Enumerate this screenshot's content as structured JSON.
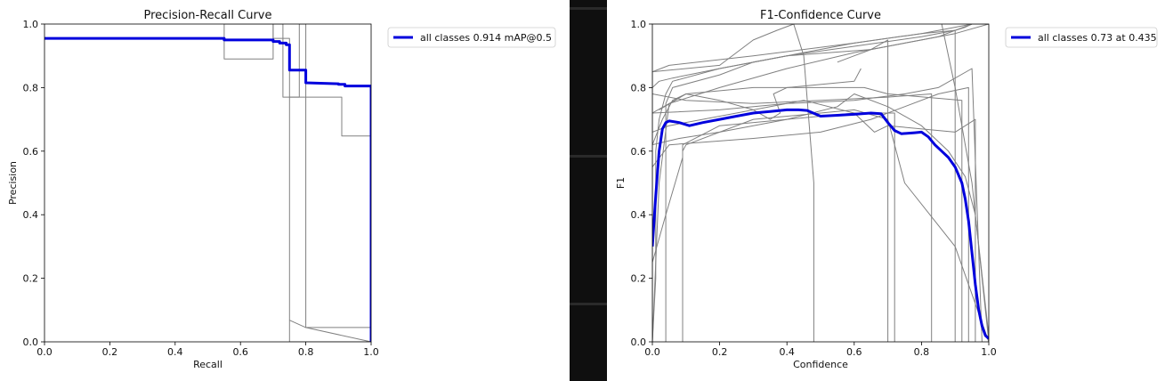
{
  "chart_data": [
    {
      "type": "line",
      "title": "Precision-Recall Curve",
      "xlabel": "Recall",
      "ylabel": "Precision",
      "xlim": [
        0,
        1
      ],
      "ylim": [
        0,
        1
      ],
      "xticks": [
        "0.0",
        "0.2",
        "0.4",
        "0.6",
        "0.8",
        "1.0"
      ],
      "yticks": [
        "0.0",
        "0.2",
        "0.4",
        "0.6",
        "0.8",
        "1.0"
      ],
      "legend_position": "outside-top-right",
      "grid": false,
      "series": [
        {
          "name": "all classes 0.914 mAP@0.5",
          "color": "#0000dd",
          "x": [
            0.0,
            0.55,
            0.55,
            0.7,
            0.7,
            0.72,
            0.72,
            0.74,
            0.74,
            0.75,
            0.75,
            0.8,
            0.8,
            0.9,
            0.9,
            0.92,
            0.92,
            1.0,
            1.0
          ],
          "y": [
            0.955,
            0.955,
            0.95,
            0.95,
            0.945,
            0.945,
            0.94,
            0.94,
            0.935,
            0.935,
            0.855,
            0.855,
            0.815,
            0.812,
            0.81,
            0.81,
            0.805,
            0.805,
            0.0
          ]
        },
        {
          "color": "#808080",
          "x": [
            0.0,
            0.55,
            0.55,
            0.7,
            0.7,
            0.75,
            0.75,
            1.0,
            1.0
          ],
          "y": [
            0.955,
            0.955,
            1.0,
            1.0,
            0.955,
            0.955,
            0.0,
            0.0,
            0.0
          ]
        },
        {
          "color": "#808080",
          "x": [
            0.55,
            0.55,
            0.7,
            0.7,
            0.73,
            0.73,
            0.78,
            0.78,
            0.8,
            0.8,
            1.0,
            1.0
          ],
          "y": [
            0.955,
            0.89,
            0.89,
            1.0,
            1.0,
            0.77,
            0.77,
            1.0,
            1.0,
            0.045,
            0.045,
            0.0
          ]
        },
        {
          "color": "#808080",
          "x": [
            0.75,
            0.91,
            0.91,
            1.0,
            1.0
          ],
          "y": [
            0.77,
            0.77,
            0.648,
            0.648,
            0.0
          ]
        },
        {
          "color": "#808080",
          "x": [
            0.75,
            0.8,
            1.0
          ],
          "y": [
            0.068,
            0.045,
            0.0
          ]
        }
      ]
    },
    {
      "type": "line",
      "title": "F1-Confidence Curve",
      "xlabel": "Confidence",
      "ylabel": "F1",
      "xlim": [
        0,
        1
      ],
      "ylim": [
        0,
        1
      ],
      "xticks": [
        "0.0",
        "0.2",
        "0.4",
        "0.6",
        "0.8",
        "1.0"
      ],
      "yticks": [
        "0.0",
        "0.2",
        "0.4",
        "0.6",
        "0.8",
        "1.0"
      ],
      "legend_position": "outside-top-right",
      "grid": false,
      "series": [
        {
          "name": "all classes 0.73 at 0.435",
          "color": "#0000dd",
          "x": [
            0.0,
            0.01,
            0.02,
            0.03,
            0.04,
            0.05,
            0.08,
            0.11,
            0.15,
            0.2,
            0.25,
            0.3,
            0.35,
            0.4,
            0.435,
            0.46,
            0.5,
            0.55,
            0.6,
            0.65,
            0.68,
            0.7,
            0.72,
            0.74,
            0.78,
            0.8,
            0.82,
            0.84,
            0.86,
            0.88,
            0.9,
            0.92,
            0.93,
            0.94,
            0.95,
            0.96,
            0.97,
            0.98,
            0.99,
            1.0
          ],
          "y": [
            0.3,
            0.46,
            0.6,
            0.67,
            0.69,
            0.695,
            0.69,
            0.68,
            0.69,
            0.7,
            0.71,
            0.72,
            0.725,
            0.73,
            0.73,
            0.728,
            0.71,
            0.713,
            0.716,
            0.72,
            0.718,
            0.69,
            0.665,
            0.655,
            0.658,
            0.66,
            0.645,
            0.62,
            0.6,
            0.58,
            0.55,
            0.5,
            0.45,
            0.38,
            0.28,
            0.18,
            0.1,
            0.05,
            0.02,
            0.01
          ]
        },
        {
          "color": "#808080",
          "x": [
            0.0,
            0.01,
            0.01,
            0.02,
            0.04,
            0.06,
            0.2,
            0.4,
            0.6,
            0.8,
            0.9,
            0.95,
            1.0
          ],
          "y": [
            0.0,
            0.2,
            0.6,
            0.7,
            0.78,
            0.82,
            0.86,
            0.9,
            0.93,
            0.96,
            0.98,
            1.0,
            1.0
          ]
        },
        {
          "color": "#808080",
          "x": [
            0.0,
            0.02,
            0.05,
            0.2,
            0.4,
            0.6,
            0.8,
            0.9,
            1.0
          ],
          "y": [
            0.0,
            0.5,
            0.75,
            0.8,
            0.86,
            0.91,
            0.95,
            0.97,
            1.0
          ]
        },
        {
          "color": "#808080",
          "x": [
            0.0,
            0.0,
            0.2,
            0.3,
            0.37,
            0.42,
            0.45,
            0.48,
            0.48
          ],
          "y": [
            0.0,
            0.85,
            0.87,
            0.95,
            0.98,
            1.0,
            0.9,
            0.5,
            0.0
          ]
        },
        {
          "color": "#808080",
          "x": [
            0.04,
            0.04,
            0.06,
            0.2,
            0.3,
            0.4,
            0.6,
            0.8,
            0.9,
            0.95,
            1.0
          ],
          "y": [
            0.0,
            0.75,
            0.8,
            0.84,
            0.88,
            0.9,
            0.94,
            0.97,
            0.99,
            1.0,
            1.0
          ]
        },
        {
          "color": "#808080",
          "x": [
            0.09,
            0.09,
            0.1,
            0.3,
            0.5,
            0.6,
            0.7,
            0.75,
            0.9,
            1.0
          ],
          "y": [
            0.0,
            0.6,
            0.62,
            0.7,
            0.72,
            0.73,
            0.7,
            0.5,
            0.3,
            0.0
          ]
        },
        {
          "color": "#808080",
          "x": [
            0.0,
            0.08,
            0.2,
            0.4,
            0.55,
            0.6,
            0.7,
            0.8,
            0.88,
            0.93,
            0.96,
            1.0
          ],
          "y": [
            0.62,
            0.64,
            0.66,
            0.7,
            0.74,
            0.78,
            0.74,
            0.68,
            0.6,
            0.52,
            0.4,
            0.02
          ]
        },
        {
          "color": "#808080",
          "x": [
            0.0,
            0.04,
            0.09,
            0.09,
            0.2,
            0.4,
            0.6,
            0.72,
            0.72
          ],
          "y": [
            0.25,
            0.4,
            0.58,
            0.62,
            0.68,
            0.7,
            0.72,
            0.72,
            0.0
          ]
        },
        {
          "color": "#808080",
          "x": [
            0.0,
            0.1,
            0.3,
            0.5,
            0.7,
            0.83,
            0.83
          ],
          "y": [
            0.78,
            0.76,
            0.75,
            0.76,
            0.77,
            0.78,
            0.0
          ]
        },
        {
          "color": "#808080",
          "x": [
            0.0,
            0.05,
            0.3,
            0.6,
            0.8,
            0.9,
            0.9
          ],
          "y": [
            0.85,
            0.87,
            0.9,
            0.94,
            0.97,
            0.98,
            0.0
          ]
        },
        {
          "color": "#808080",
          "x": [
            0.02,
            0.1,
            0.3,
            0.5,
            0.63,
            0.7,
            0.92,
            0.92
          ],
          "y": [
            0.73,
            0.78,
            0.8,
            0.8,
            0.8,
            0.78,
            0.76,
            0.0
          ]
        },
        {
          "color": "#808080",
          "x": [
            0.0,
            0.2,
            0.4,
            0.6,
            0.75,
            0.85,
            0.95,
            0.98
          ],
          "y": [
            0.72,
            0.73,
            0.75,
            0.76,
            0.78,
            0.8,
            0.86,
            0.0
          ]
        },
        {
          "color": "#808080",
          "x": [
            0.0,
            0.05,
            0.25,
            0.45,
            0.6,
            0.66,
            0.7,
            0.9,
            0.96,
            0.96
          ],
          "y": [
            0.66,
            0.68,
            0.72,
            0.76,
            0.72,
            0.66,
            0.68,
            0.66,
            0.7,
            0.0
          ]
        },
        {
          "color": "#808080",
          "x": [
            0.0,
            0.05,
            0.3,
            0.5,
            0.65,
            0.85,
            0.94,
            0.94
          ],
          "y": [
            0.55,
            0.62,
            0.64,
            0.66,
            0.7,
            0.78,
            0.8,
            0.0
          ]
        },
        {
          "color": "#808080",
          "x": [
            0.0,
            0.03,
            0.06,
            0.1,
            0.2,
            0.3,
            0.35,
            0.38,
            0.36,
            0.4,
            0.6,
            0.62
          ],
          "y": [
            0.62,
            0.7,
            0.76,
            0.78,
            0.76,
            0.73,
            0.7,
            0.72,
            0.78,
            0.8,
            0.82,
            0.86
          ]
        },
        {
          "color": "#808080",
          "x": [
            0.86,
            0.9,
            0.95,
            1.0
          ],
          "y": [
            1.0,
            0.8,
            0.5,
            0.0
          ]
        },
        {
          "color": "#808080",
          "x": [
            0.0,
            0.02,
            0.06,
            0.2,
            0.4,
            0.65,
            0.7,
            0.7
          ],
          "y": [
            0.8,
            0.82,
            0.83,
            0.86,
            0.9,
            0.92,
            0.95,
            0.0
          ]
        },
        {
          "color": "#808080",
          "x": [
            0.55,
            0.6,
            0.65,
            0.7,
            0.75,
            0.8,
            0.85,
            0.9,
            0.93,
            0.95,
            0.97,
            1.0
          ],
          "y": [
            0.88,
            0.9,
            0.92,
            0.93,
            0.94,
            0.95,
            0.96,
            0.98,
            0.99,
            1.0,
            1.0,
            1.0
          ]
        },
        {
          "color": "#808080",
          "x": [
            0.0,
            0.0,
            0.05,
            0.1
          ],
          "y": [
            0.0,
            0.72,
            0.75,
            0.78
          ]
        }
      ]
    }
  ]
}
